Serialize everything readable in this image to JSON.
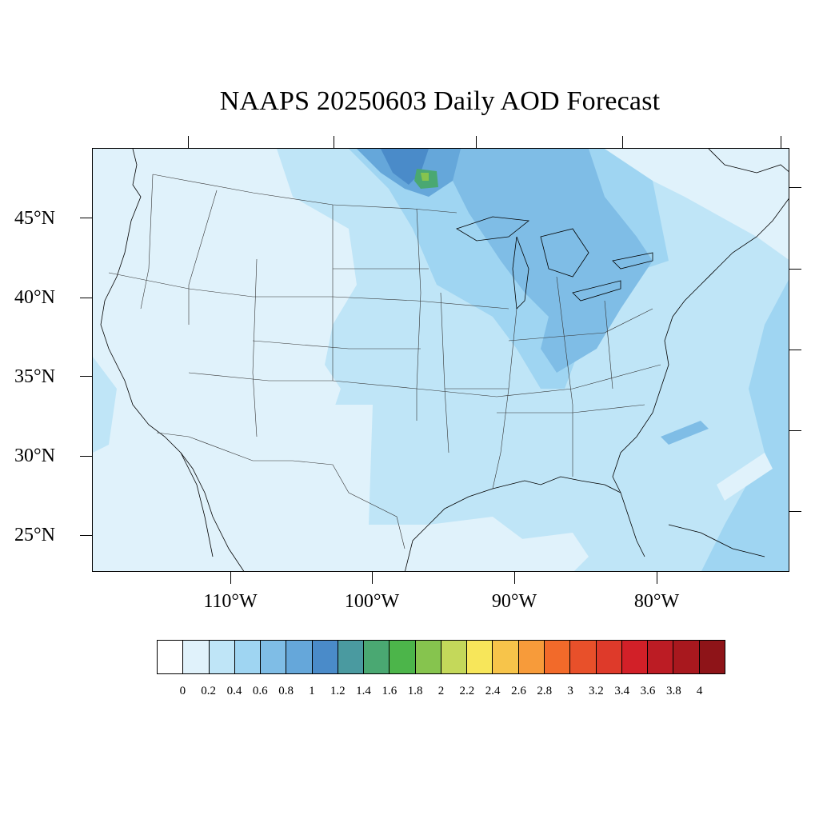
{
  "title": "NAAPS 20250603 Daily AOD Forecast",
  "latitude_labels": [
    "45°N",
    "40°N",
    "35°N",
    "30°N",
    "25°N"
  ],
  "longitude_labels": [
    "110°W",
    "100°W",
    "90°W",
    "80°W"
  ],
  "legend": {
    "colors": [
      "#ffffff",
      "#e0f2fb",
      "#bfe5f7",
      "#9fd5f2",
      "#7fbde6",
      "#65a7da",
      "#4a8bc9",
      "#4a9aa0",
      "#4aa872",
      "#4cb54a",
      "#86c44e",
      "#c4d85a",
      "#f7e65a",
      "#f7c44a",
      "#f79b3a",
      "#f26a2a",
      "#e8502a",
      "#de3a2a",
      "#d22028",
      "#bc1c24",
      "#a8181e",
      "#8e1418"
    ],
    "labels": [
      "0",
      "0.2",
      "0.4",
      "0.6",
      "0.8",
      "1",
      "1.2",
      "1.4",
      "1.6",
      "1.8",
      "2",
      "2.2",
      "2.4",
      "2.6",
      "2.8",
      "3",
      "3.2",
      "3.4",
      "3.6",
      "3.8",
      "4"
    ]
  },
  "map": {
    "background_level": "0.2",
    "regions": [
      "bg-light-blue",
      "plume-canada",
      "plume-midwest",
      "plume-gulf",
      "plume-atlantic"
    ]
  }
}
